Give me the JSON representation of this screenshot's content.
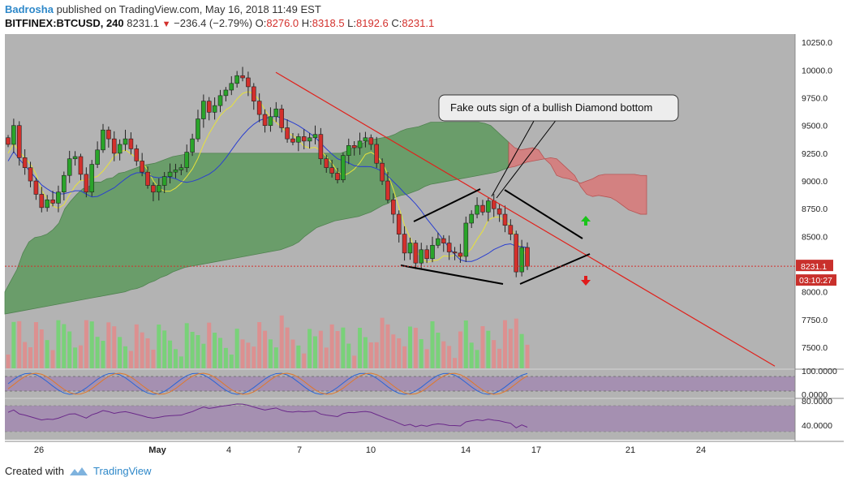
{
  "header": {
    "author": "Badrosha",
    "published": "published on TradingView.com, May 16, 2018 11:49 EST",
    "symbol": "BITFINEX:BTCUSD, 240",
    "last": "8231.1",
    "change": "−236.4 (−2.79%)",
    "ohlc": {
      "open_label": "O:",
      "open": "8276.0",
      "high_label": "H:",
      "high": "8318.5",
      "low_label": "L:",
      "low": "8192.6",
      "close_label": "C:",
      "close": "8231.1"
    }
  },
  "footer": {
    "created_with": "Created with",
    "brand": "TradingView"
  },
  "colors": {
    "bull": "#2aa42a",
    "bear": "#d3302c",
    "cloud_green": "#5e9a5e",
    "cloud_red": "#d77c7c",
    "tenkan": "#e7e23a",
    "kijun": "#2a3fd0",
    "trendline": "#e0211b",
    "background": "#b3b3b3",
    "osc_band": "#a084b0"
  },
  "chart_data": {
    "type": "candlestick",
    "price_axis": {
      "ticks": [
        "10250.0",
        "10000.0",
        "9750.0",
        "9500.0",
        "9250.0",
        "9000.0",
        "8750.0",
        "8500.0",
        "8250.0",
        "8000.0",
        "7750.0",
        "7500.0"
      ],
      "range": [
        7310,
        10325
      ]
    },
    "last_price_tag": "8231.1",
    "countdown_tag": "03:10:27",
    "date_labels": [
      {
        "text": "26",
        "bold": false
      },
      {
        "text": "May",
        "bold": true
      },
      {
        "text": "4",
        "bold": false
      },
      {
        "text": "7",
        "bold": false
      },
      {
        "text": "10",
        "bold": false
      },
      {
        "text": "14",
        "bold": false
      },
      {
        "text": "17",
        "bold": false
      },
      {
        "text": "21",
        "bold": false
      },
      {
        "text": "24",
        "bold": false
      }
    ],
    "annotation": "Fake outs sign of a bullish Diamond bottom",
    "stoch_axis": {
      "ticks": [
        "100.0000",
        "0.0000"
      ]
    },
    "rsi_axis": {
      "ticks": [
        "80.0000",
        "40.0000"
      ]
    },
    "trendline": {
      "from": 9980,
      "to": 7330
    },
    "closes": [
      9330,
      9500,
      9210,
      9120,
      9000,
      8880,
      8760,
      8830,
      8800,
      8900,
      9050,
      9200,
      9220,
      9060,
      8900,
      9150,
      9280,
      9460,
      9380,
      9250,
      9330,
      9380,
      9290,
      9180,
      9080,
      8960,
      8900,
      8960,
      9040,
      9080,
      9100,
      9120,
      9260,
      9380,
      9560,
      9720,
      9620,
      9680,
      9770,
      9820,
      9880,
      9950,
      9930,
      9850,
      9720,
      9600,
      9500,
      9580,
      9650,
      9480,
      9380,
      9350,
      9400,
      9360,
      9390,
      9420,
      9200,
      9120,
      9070,
      9010,
      9230,
      9320,
      9300,
      9360,
      9390,
      9330,
      9160,
      9000,
      8830,
      8700,
      8520,
      8350,
      8440,
      8260,
      8380,
      8300,
      8420,
      8480,
      8440,
      8360,
      8350,
      8320,
      8620,
      8700,
      8780,
      8720,
      8820,
      8750,
      8700,
      8600,
      8520,
      8180,
      8400,
      8231
    ],
    "cloud_top": [
      8000,
      8100,
      8200,
      8350,
      8450,
      8490,
      8500,
      8520,
      8560,
      8620,
      8750,
      8820,
      8880,
      8930,
      8950,
      8990,
      8990,
      9020,
      9030,
      9070,
      9080,
      9100,
      9120,
      9140,
      9150,
      9160,
      9180,
      9200,
      9220,
      9230,
      9240,
      9250,
      9250,
      9250,
      9250,
      9250,
      9250,
      9250,
      9250,
      9250,
      9250,
      9250,
      9250,
      9250,
      9250,
      9250,
      9250,
      9250,
      9250,
      9250,
      9250,
      9250,
      9250,
      9250,
      9250,
      9250,
      9250,
      9270,
      9300,
      9320,
      9350,
      9370,
      9380,
      9390,
      9400,
      9420,
      9450,
      9470,
      9480,
      9490,
      9510,
      9530,
      9530,
      9530,
      9530,
      9530,
      9530,
      9530,
      9530,
      9530,
      9520,
      9500,
      9450,
      9400,
      9350,
      9300,
      9280,
      9290,
      9300,
      9280,
      9200,
      9150,
      9050,
      9030,
      9020,
      9000,
      8980,
      9000,
      9020,
      9050,
      9060,
      9060,
      9060,
      9060,
      9060,
      9060,
      9050,
      9050
    ],
    "cloud_bottom": [
      7800,
      7810,
      7820,
      7830,
      7840,
      7850,
      7860,
      7870,
      7880,
      7890,
      7900,
      7910,
      7920,
      7930,
      7940,
      7950,
      7960,
      7970,
      7980,
      7990,
      8000,
      8020,
      8030,
      8050,
      8080,
      8100,
      8130,
      8150,
      8180,
      8200,
      8220,
      8230,
      8240,
      8250,
      8260,
      8270,
      8280,
      8290,
      8300,
      8310,
      8320,
      8330,
      8340,
      8350,
      8360,
      8370,
      8380,
      8400,
      8420,
      8450,
      8500,
      8540,
      8580,
      8600,
      8620,
      8640,
      8650,
      8660,
      8670,
      8680,
      8700,
      8720,
      8750,
      8780,
      8800,
      8850,
      8870,
      8880,
      8900,
      8920,
      8950,
      8970,
      8980,
      8990,
      9000,
      9010,
      9020,
      9030,
      9040,
      9050,
      9060,
      9070,
      9080,
      9100,
      9120,
      9130,
      9150,
      9170,
      9180,
      9190,
      9200,
      9210,
      9200,
      9150,
      9100,
      9050,
      8950,
      8880,
      8860,
      8870,
      8860,
      8850,
      8820,
      8780,
      8740,
      8720,
      8700,
      8700
    ]
  }
}
